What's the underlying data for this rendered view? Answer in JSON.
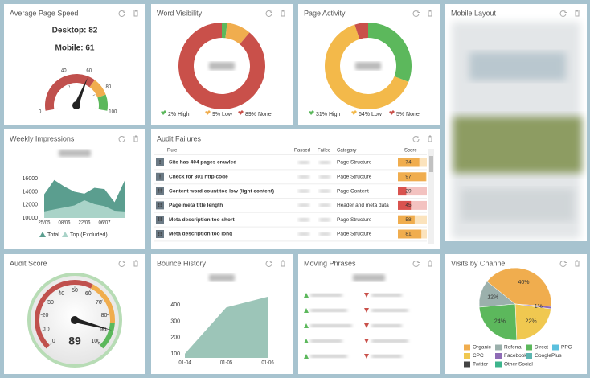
{
  "page_speed": {
    "title": "Average Page Speed",
    "desktop": "Desktop: 82",
    "mobile": "Mobile: 61",
    "gauge": {
      "value": 61,
      "range": [
        0,
        100
      ],
      "ticks": [
        0,
        40,
        60,
        80,
        100
      ],
      "bands": [
        {
          "from": 0,
          "to": 68,
          "color": "#c0504d"
        },
        {
          "from": 68,
          "to": 85,
          "color": "#f0ad4e"
        },
        {
          "from": 85,
          "to": 100,
          "color": "#5cb85c"
        }
      ]
    }
  },
  "word_visibility": {
    "title": "Word Visibility",
    "slices": [
      {
        "label": "2% High",
        "value": 2,
        "color": "#5cb85c"
      },
      {
        "label": "9% Low",
        "value": 9,
        "color": "#f0ad4e"
      },
      {
        "label": "89% None",
        "value": 89,
        "color": "#c9504a"
      }
    ]
  },
  "page_activity": {
    "title": "Page Activity",
    "slices": [
      {
        "label": "31% High",
        "value": 31,
        "color": "#5cb85c"
      },
      {
        "label": "64% Low",
        "value": 64,
        "color": "#f3b94a"
      },
      {
        "label": "5% None",
        "value": 5,
        "color": "#c9504a"
      }
    ]
  },
  "mobile_layout": {
    "title": "Mobile Layout"
  },
  "weekly_impressions": {
    "title": "Weekly Impressions",
    "chart_data": {
      "type": "area",
      "categories": [
        "25/05",
        null,
        "08/06",
        null,
        "22/06",
        null,
        "06/07",
        null,
        null
      ],
      "series": [
        {
          "name": "Total",
          "color": "#5b9e8f",
          "values": [
            13600,
            15800,
            14800,
            14000,
            13700,
            14600,
            14400,
            12400,
            15700
          ]
        },
        {
          "name": "Top (Excluded)",
          "color": "#a9d3c8",
          "values": [
            11000,
            11300,
            11600,
            11900,
            12700,
            12100,
            11800,
            11100,
            11000
          ]
        }
      ],
      "ylim": [
        10000,
        17000
      ],
      "yticks": [
        10000,
        12000,
        14000,
        16000
      ]
    }
  },
  "audit_failures": {
    "title": "Audit Failures",
    "columns": [
      "Rule",
      "Passed",
      "Failed",
      "Category",
      "Score"
    ],
    "rows": [
      {
        "icon": "!",
        "rule": "Site has 404 pages crawled",
        "category": "Page Structure",
        "score": 74
      },
      {
        "icon": "!",
        "rule": "Check for 301 http code",
        "category": "Page Structure",
        "score": 97
      },
      {
        "icon": "!!",
        "rule": "Content word count too low (light content)",
        "category": "Page Content",
        "score": 29
      },
      {
        "icon": "!!",
        "rule": "Page meta title length",
        "category": "Header and meta data",
        "score": 45
      },
      {
        "icon": "!!",
        "rule": "Meta description too short",
        "category": "Page Structure",
        "score": 58
      },
      {
        "icon": "!!",
        "rule": "Meta description too long",
        "category": "Page Structure",
        "score": 81
      }
    ]
  },
  "audit_score": {
    "title": "Audit Score",
    "gauge": {
      "value": 89,
      "range": [
        0,
        100
      ],
      "ticks": [
        0,
        10,
        20,
        30,
        40,
        50,
        60,
        70,
        80,
        90,
        100
      ],
      "bands": [
        {
          "from": 0,
          "to": 60,
          "color": "#c0504d"
        },
        {
          "from": 60,
          "to": 85,
          "color": "#f0ad4e"
        },
        {
          "from": 85,
          "to": 100,
          "color": "#5cb85c"
        }
      ]
    }
  },
  "bounce_history": {
    "title": "Bounce History",
    "chart_data": {
      "type": "area",
      "categories": [
        "01-04",
        "01-05",
        "01-06"
      ],
      "values": [
        100,
        385,
        450
      ],
      "color": "#9cc5b8",
      "ylim": [
        75,
        460
      ],
      "yticks": [
        100,
        200,
        300,
        400
      ]
    }
  },
  "moving_phrases": {
    "title": "Moving Phrases"
  },
  "visits_by_channel": {
    "title": "Visits by Channel",
    "chart_data": {
      "type": "pie",
      "series": [
        {
          "name": "Organic",
          "color": "#f0ad4e",
          "value": 40,
          "value_label": "40%"
        },
        {
          "name": "Referral",
          "color": "#9bb0ac",
          "value": 12,
          "value_label": "12%"
        },
        {
          "name": "Direct",
          "color": "#5cb85c",
          "value": 24,
          "value_label": "24%"
        },
        {
          "name": "PPC",
          "color": "#5bc0de"
        },
        {
          "name": "CPC",
          "color": "#f0c850",
          "value": 22,
          "value_label": "22%"
        },
        {
          "name": "Facebook",
          "color": "#8e6bb5",
          "value": 1,
          "value_label": "1%"
        },
        {
          "name": "GooglePlus",
          "color": "#5bb5b0"
        },
        {
          "name": "Twitter",
          "color": "#444444"
        },
        {
          "name": "Other Social",
          "color": "#3db48c"
        }
      ]
    }
  }
}
